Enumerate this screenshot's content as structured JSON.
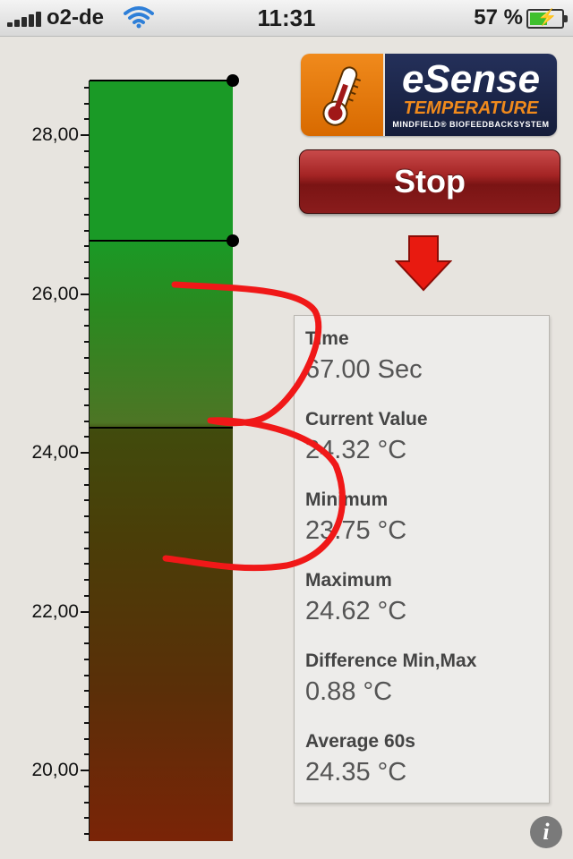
{
  "status_bar": {
    "carrier": "o2-de",
    "time": "11:31",
    "battery_percent": "57 %",
    "battery_level": 0.57
  },
  "gauge": {
    "tick_labels": [
      "28,00",
      "26,00",
      "24,00",
      "22,00",
      "20,00"
    ],
    "colors": {
      "top": "#1a9a26",
      "bottom": "#7a2407"
    }
  },
  "logo": {
    "brand": "eSense",
    "product": "TEMPERATURE",
    "tagline": "MINDFIELD® BIOFEEDBACKSYSTEM",
    "icon": "thermometer-icon"
  },
  "controls": {
    "stop_label": "Stop",
    "arrow_icon": "arrow-down-icon",
    "info_label": "i"
  },
  "stats": {
    "time_label": "Time",
    "time_value": "67.00 Sec",
    "current_label": "Current Value",
    "current_value": "24.32 °C",
    "minimum_label": "Minimum",
    "minimum_value": "23.75 °C",
    "maximum_label": "Maximum",
    "maximum_value": "24.62 °C",
    "difference_label": "Difference Min,Max",
    "difference_value": "0.88 °C",
    "average_label": "Average 60s",
    "average_value": "24.35 °C"
  }
}
